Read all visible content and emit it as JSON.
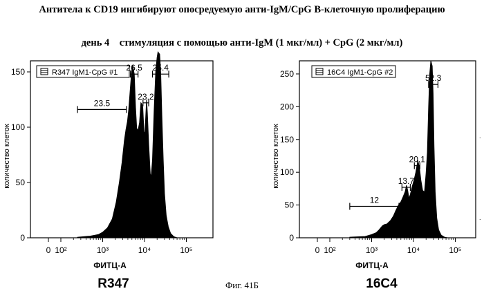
{
  "title": "Антитела к CD19 ингибируют опосредуемую анти-IgM/CpG В-клеточную пролиферацию",
  "subtitle": "день 4    стимуляция с помощью анти-IgM (1 мкг/мл) + CpG (2 мкг/мл)",
  "figure_caption": "Фиг. 41Б",
  "chart_data": [
    {
      "type": "area",
      "panel_label": "R347",
      "legend": "R347 IgM1-CpG #1",
      "xlabel": "ФИТЦ-А",
      "ylabel": "количество клеток",
      "x_scale": "logicle",
      "x_ticks": [
        "0",
        "10²",
        "10³",
        "10⁴",
        "10⁵"
      ],
      "x_tick_values": [
        0,
        100,
        1000,
        10000,
        100000
      ],
      "ylim": [
        0,
        160
      ],
      "y_ticks": [
        0,
        50,
        100,
        150
      ],
      "curve": [
        [
          250,
          0.5
        ],
        [
          500,
          1.5
        ],
        [
          800,
          3
        ],
        [
          1000,
          5
        ],
        [
          1300,
          9
        ],
        [
          1700,
          17
        ],
        [
          2100,
          32
        ],
        [
          2500,
          50
        ],
        [
          2900,
          68
        ],
        [
          3300,
          88
        ],
        [
          3600,
          98
        ],
        [
          3900,
          105
        ],
        [
          4200,
          116
        ],
        [
          4500,
          131
        ],
        [
          4900,
          150
        ],
        [
          5200,
          156
        ],
        [
          5700,
          148
        ],
        [
          6100,
          118
        ],
        [
          6500,
          99
        ],
        [
          7000,
          97
        ],
        [
          7600,
          104
        ],
        [
          8200,
          122
        ],
        [
          8600,
          121
        ],
        [
          9100,
          118
        ],
        [
          9700,
          96
        ],
        [
          10200,
          94
        ],
        [
          10700,
          110
        ],
        [
          11200,
          125
        ],
        [
          11700,
          113
        ],
        [
          12600,
          84
        ],
        [
          13700,
          58
        ],
        [
          14400,
          55
        ],
        [
          15500,
          70
        ],
        [
          17000,
          115
        ],
        [
          18500,
          150
        ],
        [
          20000,
          163
        ],
        [
          21000,
          168
        ],
        [
          23000,
          166
        ],
        [
          24500,
          148
        ],
        [
          26000,
          110
        ],
        [
          28000,
          70
        ],
        [
          30000,
          40
        ],
        [
          33000,
          20
        ],
        [
          37000,
          10
        ],
        [
          42000,
          4
        ],
        [
          50000,
          1
        ],
        [
          60000,
          0
        ]
      ],
      "gates": [
        {
          "label": "23.5",
          "from": 250,
          "to": 3700,
          "y": 116
        },
        {
          "label": "26.5",
          "from": 4600,
          "to": 7000,
          "y": 148
        },
        {
          "label": "23.2",
          "from": 9200,
          "to": 12600,
          "y": 122
        },
        {
          "label": "25.4",
          "from": 15500,
          "to": 38000,
          "y": 148
        }
      ]
    },
    {
      "type": "area",
      "panel_label": "16C4",
      "legend": "16C4 IgM1-CpG #2",
      "xlabel": "ФИТЦ-А",
      "ylabel": "количество клеток",
      "x_scale": "logicle",
      "x_ticks": [
        "0",
        "10²",
        "10³",
        "10⁴",
        "10⁵"
      ],
      "x_tick_values": [
        0,
        100,
        1000,
        10000,
        100000
      ],
      "ylim": [
        0,
        270
      ],
      "y_ticks": [
        0,
        50,
        100,
        150,
        200,
        250
      ],
      "curve": [
        [
          300,
          1
        ],
        [
          700,
          2
        ],
        [
          1000,
          5
        ],
        [
          1300,
          8
        ],
        [
          1500,
          12
        ],
        [
          1800,
          18
        ],
        [
          2000,
          20
        ],
        [
          2300,
          21
        ],
        [
          2800,
          26
        ],
        [
          3300,
          33
        ],
        [
          3800,
          42
        ],
        [
          4400,
          50
        ],
        [
          5000,
          55
        ],
        [
          5600,
          62
        ],
        [
          6300,
          70
        ],
        [
          6800,
          80
        ],
        [
          7300,
          72
        ],
        [
          7800,
          60
        ],
        [
          8400,
          66
        ],
        [
          9300,
          78
        ],
        [
          10300,
          88
        ],
        [
          11400,
          100
        ],
        [
          12700,
          118
        ],
        [
          13800,
          108
        ],
        [
          15000,
          88
        ],
        [
          16600,
          72
        ],
        [
          18400,
          70
        ],
        [
          20000,
          98
        ],
        [
          21500,
          130
        ],
        [
          23000,
          200
        ],
        [
          24500,
          250
        ],
        [
          26000,
          270
        ],
        [
          28000,
          262
        ],
        [
          29500,
          220
        ],
        [
          31000,
          140
        ],
        [
          33000,
          70
        ],
        [
          36000,
          30
        ],
        [
          40000,
          12
        ],
        [
          46000,
          4
        ],
        [
          55000,
          1
        ],
        [
          65000,
          0
        ]
      ],
      "gates": [
        {
          "label": "12",
          "from": 300,
          "to": 4500,
          "y": 48
        },
        {
          "label": "13.7",
          "from": 5300,
          "to": 8400,
          "y": 77
        },
        {
          "label": "20.1",
          "from": 10500,
          "to": 14200,
          "y": 110
        },
        {
          "label": "52.3",
          "from": 23000,
          "to": 38500,
          "y": 234
        }
      ]
    }
  ]
}
